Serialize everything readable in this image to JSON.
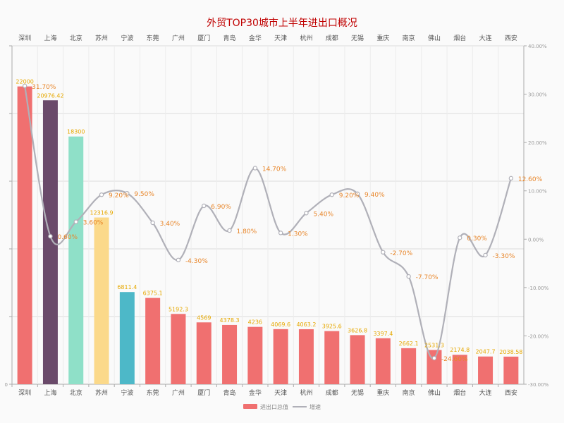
{
  "chart_data": {
    "type": "bar+line",
    "title": "外贸TOP30城市上半年进出口概况",
    "categories": [
      "深圳",
      "上海",
      "北京",
      "苏州",
      "宁波",
      "东莞",
      "广州",
      "厦门",
      "青岛",
      "金华",
      "天津",
      "杭州",
      "成都",
      "无锡",
      "重庆",
      "南京",
      "佛山",
      "烟台",
      "大连",
      "西安"
    ],
    "series": [
      {
        "name": "进出口总值",
        "type": "bar",
        "values": [
          22000,
          20976.42,
          18300,
          12316.9,
          6811.4,
          6375.1,
          5192.3,
          4569,
          4378.3,
          4236,
          4069.6,
          4063.2,
          3925.6,
          3626.8,
          3397.4,
          2662.1,
          2531.3,
          2174.8,
          2047.7,
          2038.58
        ],
        "value_labels": [
          "22000",
          "20976.42",
          "18300",
          "12316.9",
          "6811.4",
          "6375.1",
          "5192.3",
          "4569",
          "4378.3",
          "4236",
          "4069.6",
          "4063.2",
          "3925.6",
          "3626.8",
          "3397.4",
          "2662.1",
          "2531.3",
          "2174.8",
          "2047.7",
          "2038.58"
        ],
        "colors": [
          "#f07070",
          "#6a4a6a",
          "#8fe0c8",
          "#fbd98a",
          "#4db8c8",
          "#f07070",
          "#f07070",
          "#f07070",
          "#f07070",
          "#f07070",
          "#f07070",
          "#f07070",
          "#f07070",
          "#f07070",
          "#f07070",
          "#f07070",
          "#f07070",
          "#f07070",
          "#f07070",
          "#f07070"
        ]
      },
      {
        "name": "增速",
        "type": "line",
        "values": [
          31.7,
          0.6,
          3.6,
          9.2,
          9.5,
          3.4,
          -4.3,
          6.9,
          1.8,
          14.7,
          1.3,
          5.4,
          9.2,
          9.4,
          -2.7,
          -7.7,
          -24.6,
          0.3,
          -3.3,
          12.6
        ],
        "value_labels": [
          "31.70%",
          "0.60%",
          "3.60%",
          "9.20%",
          "9.50%",
          "3.40%",
          "-4.30%",
          "6.90%",
          "1.80%",
          "14.70%",
          "1.30%",
          "5.40%",
          "9.20%",
          "9.40%",
          "-2.70%",
          "-7.70%",
          "-24.60%",
          "0.30%",
          "-3.30%",
          "12.60%"
        ],
        "color": "#b0b0b8"
      }
    ],
    "y_left": {
      "min": 0,
      "max": 25000,
      "tick_labels": [
        "0",
        "",
        "",
        "",
        "",
        ""
      ]
    },
    "y_right": {
      "min": -30,
      "max": 40,
      "ticks": [
        40,
        30,
        20,
        10,
        0,
        -10,
        -20,
        -30
      ],
      "tick_labels": [
        "40.00%",
        "30.00%",
        "20.00%",
        "10.00%",
        "0.00%",
        "-10.00%",
        "-20.00%",
        "-30.00%"
      ]
    },
    "grid": true,
    "legend_position": "bottom-center",
    "legend": [
      {
        "name": "进出口总值",
        "color": "#f07070",
        "kind": "bar"
      },
      {
        "name": "增速",
        "color": "#b0b0b8",
        "kind": "line"
      }
    ]
  }
}
